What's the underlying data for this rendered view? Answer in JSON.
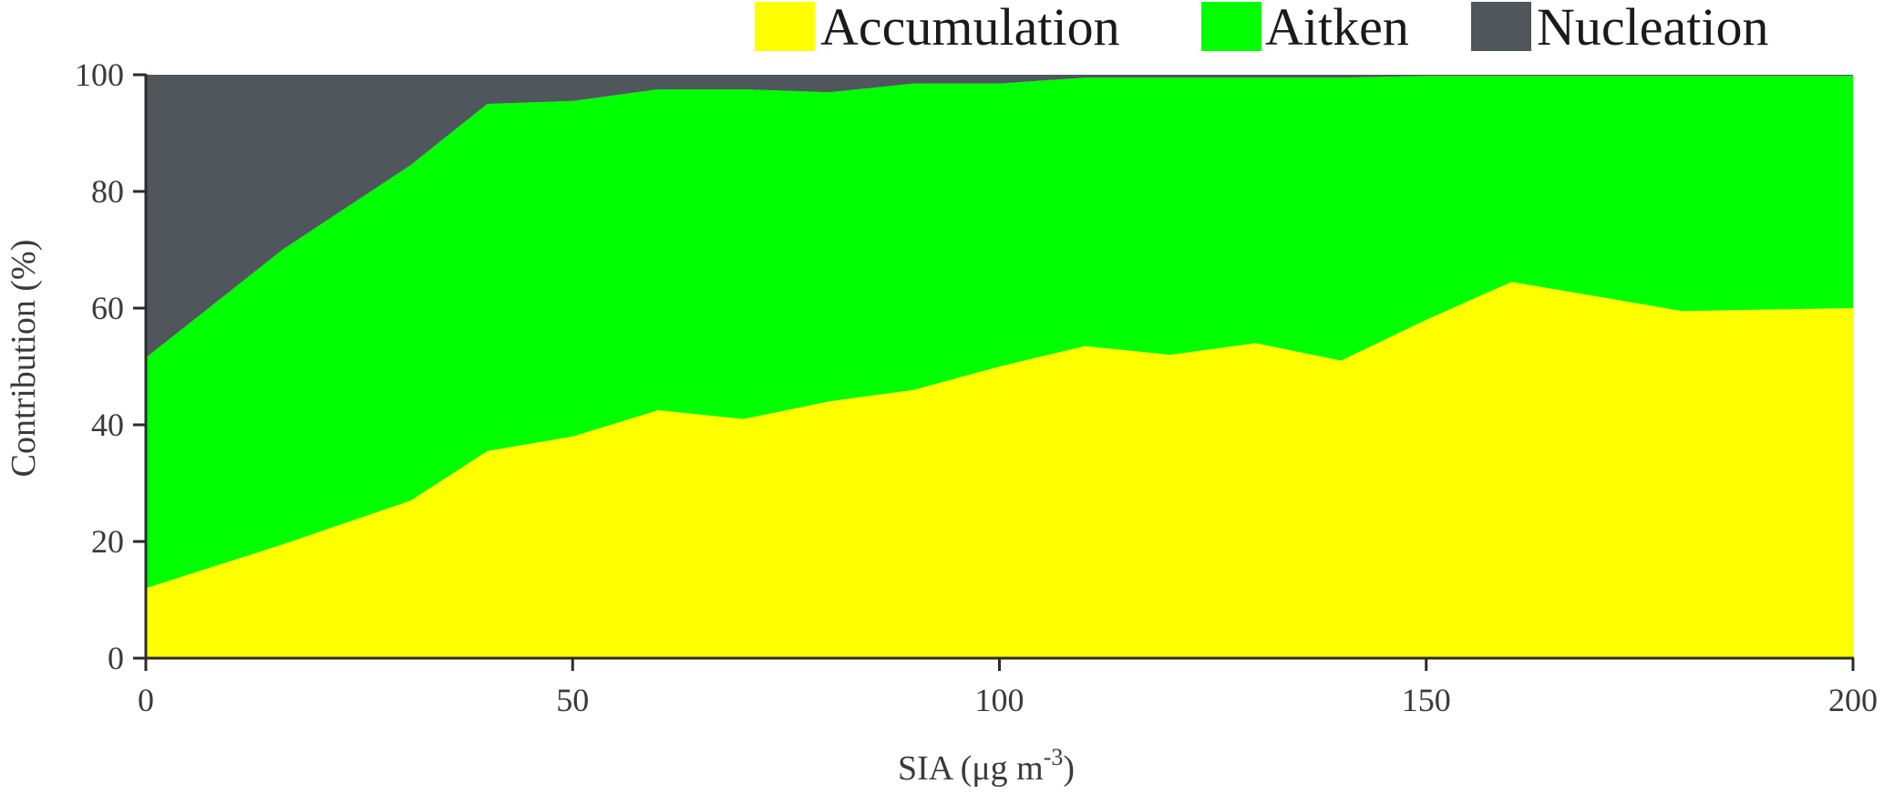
{
  "chart_data": {
    "type": "area",
    "stacked": true,
    "xlabel": "SIA (μg m",
    "xlabel_sup": "-3",
    "xlabel_end": ")",
    "ylabel": "Contribution  (%)",
    "xlim": [
      0,
      200
    ],
    "ylim": [
      0,
      100
    ],
    "xticks": [
      0,
      50,
      100,
      150,
      200
    ],
    "yticks": [
      0,
      20,
      40,
      60,
      80,
      100
    ],
    "grid": false,
    "legend_position": "top-right",
    "x": [
      0,
      16,
      31,
      40,
      50,
      60,
      70,
      80,
      90,
      100,
      110,
      120,
      130,
      140,
      150,
      160,
      180,
      200
    ],
    "series": [
      {
        "name": "Accumulation",
        "color": "#ffff00",
        "values": [
          12,
          19.5,
          27,
          35.5,
          38,
          42.5,
          41,
          44,
          46,
          50,
          53.5,
          52,
          54,
          51,
          58,
          64.5,
          59.5,
          60
        ]
      },
      {
        "name": "Aitken",
        "color": "#00ff00",
        "values": [
          39.5,
          50.5,
          57.5,
          59.5,
          57.5,
          55,
          56.5,
          53,
          52.5,
          48.5,
          46,
          47.5,
          45.5,
          48.5,
          41.8,
          35.3,
          40.3,
          39.8
        ]
      },
      {
        "name": "Nucleation",
        "color": "#4f565c",
        "values": [
          48.5,
          30,
          15.5,
          5,
          4.5,
          2.5,
          2.5,
          3,
          1.5,
          1.5,
          0.5,
          0.5,
          0.5,
          0.5,
          0.2,
          0.2,
          0.2,
          0.2
        ]
      }
    ]
  }
}
